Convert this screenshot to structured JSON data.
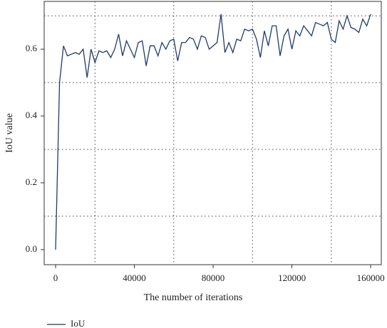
{
  "chart_data": {
    "type": "line",
    "xlabel": "The number of iterations",
    "ylabel": "IoU value",
    "x": [
      0,
      2000,
      4000,
      6000,
      8000,
      10000,
      12000,
      14000,
      16000,
      18000,
      20000,
      22000,
      24000,
      26000,
      28000,
      30000,
      32000,
      34000,
      36000,
      38000,
      40000,
      42000,
      44000,
      46000,
      48000,
      50000,
      52000,
      54000,
      56000,
      58000,
      60000,
      62000,
      64000,
      66000,
      68000,
      70000,
      72000,
      74000,
      76000,
      78000,
      80000,
      82000,
      84000,
      86000,
      88000,
      90000,
      92000,
      94000,
      96000,
      98000,
      100000,
      102000,
      104000,
      106000,
      108000,
      110000,
      112000,
      114000,
      116000,
      118000,
      120000,
      122000,
      124000,
      126000,
      128000,
      130000,
      132000,
      134000,
      136000,
      138000,
      140000,
      142000,
      144000,
      146000,
      148000,
      150000,
      152000,
      154000,
      156000,
      158000,
      160000
    ],
    "series": [
      {
        "name": "IoU",
        "color": "#1f3a6e",
        "values": [
          0,
          0.5,
          0.61,
          0.58,
          0.585,
          0.59,
          0.585,
          0.6,
          0.515,
          0.6,
          0.56,
          0.595,
          0.59,
          0.595,
          0.575,
          0.6,
          0.645,
          0.58,
          0.625,
          0.6,
          0.575,
          0.62,
          0.625,
          0.55,
          0.61,
          0.61,
          0.58,
          0.62,
          0.6,
          0.625,
          0.63,
          0.565,
          0.62,
          0.62,
          0.635,
          0.63,
          0.6,
          0.64,
          0.635,
          0.6,
          0.61,
          0.62,
          0.705,
          0.59,
          0.62,
          0.59,
          0.63,
          0.625,
          0.66,
          0.655,
          0.66,
          0.63,
          0.575,
          0.655,
          0.61,
          0.67,
          0.67,
          0.58,
          0.64,
          0.66,
          0.6,
          0.655,
          0.64,
          0.67,
          0.655,
          0.64,
          0.68,
          0.675,
          0.67,
          0.68,
          0.63,
          0.62,
          0.685,
          0.66,
          0.7,
          0.665,
          0.66,
          0.65,
          0.69,
          0.67,
          0.705
        ]
      }
    ],
    "xlim": [
      -5800,
      165400
    ],
    "ylim": [
      -0.045,
      0.743
    ],
    "xticks": [
      0,
      40000,
      80000,
      120000,
      160000
    ],
    "yticks": [
      {
        "value": 0,
        "label": "0.0"
      },
      0.2,
      0.4,
      0.6
    ],
    "xgrid": [
      20000,
      60000,
      100000,
      140000
    ],
    "ygrid": [
      0.1,
      0.3,
      0.5,
      0.7
    ],
    "grid": true,
    "legend": "bottom-left"
  }
}
